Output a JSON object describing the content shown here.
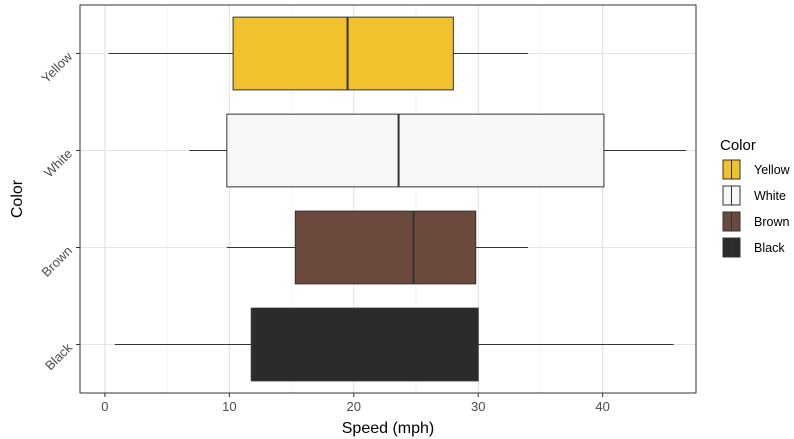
{
  "chart_data": {
    "type": "boxplot",
    "orientation": "horizontal",
    "xlabel": "Speed (mph)",
    "ylabel": "Color",
    "xlim": [
      -2,
      47.5
    ],
    "xticks": [
      0,
      10,
      20,
      30,
      40
    ],
    "grid": true,
    "legend": {
      "title": "Color",
      "position": "right"
    },
    "categories": [
      "Yellow",
      "White",
      "Brown",
      "Black"
    ],
    "series": [
      {
        "category": "Yellow",
        "color": "#F2C12E",
        "min": 0.3,
        "q1": 10.3,
        "median": 19.5,
        "q3": 28.0,
        "max": 34.0
      },
      {
        "category": "White",
        "color": "#F7F7F7",
        "min": 6.8,
        "q1": 9.8,
        "median": 23.6,
        "q3": 40.1,
        "max": 46.7
      },
      {
        "category": "Brown",
        "color": "#6B4A3D",
        "min": 9.8,
        "q1": 15.3,
        "median": 24.8,
        "q3": 29.8,
        "max": 34.0
      },
      {
        "category": "Black",
        "color": "#2B2B2B",
        "min": 0.8,
        "q1": 11.8,
        "median": 11.8,
        "q3": 30.0,
        "max": 45.7
      }
    ],
    "legend_order": [
      "Yellow",
      "White",
      "Brown",
      "Black"
    ]
  }
}
